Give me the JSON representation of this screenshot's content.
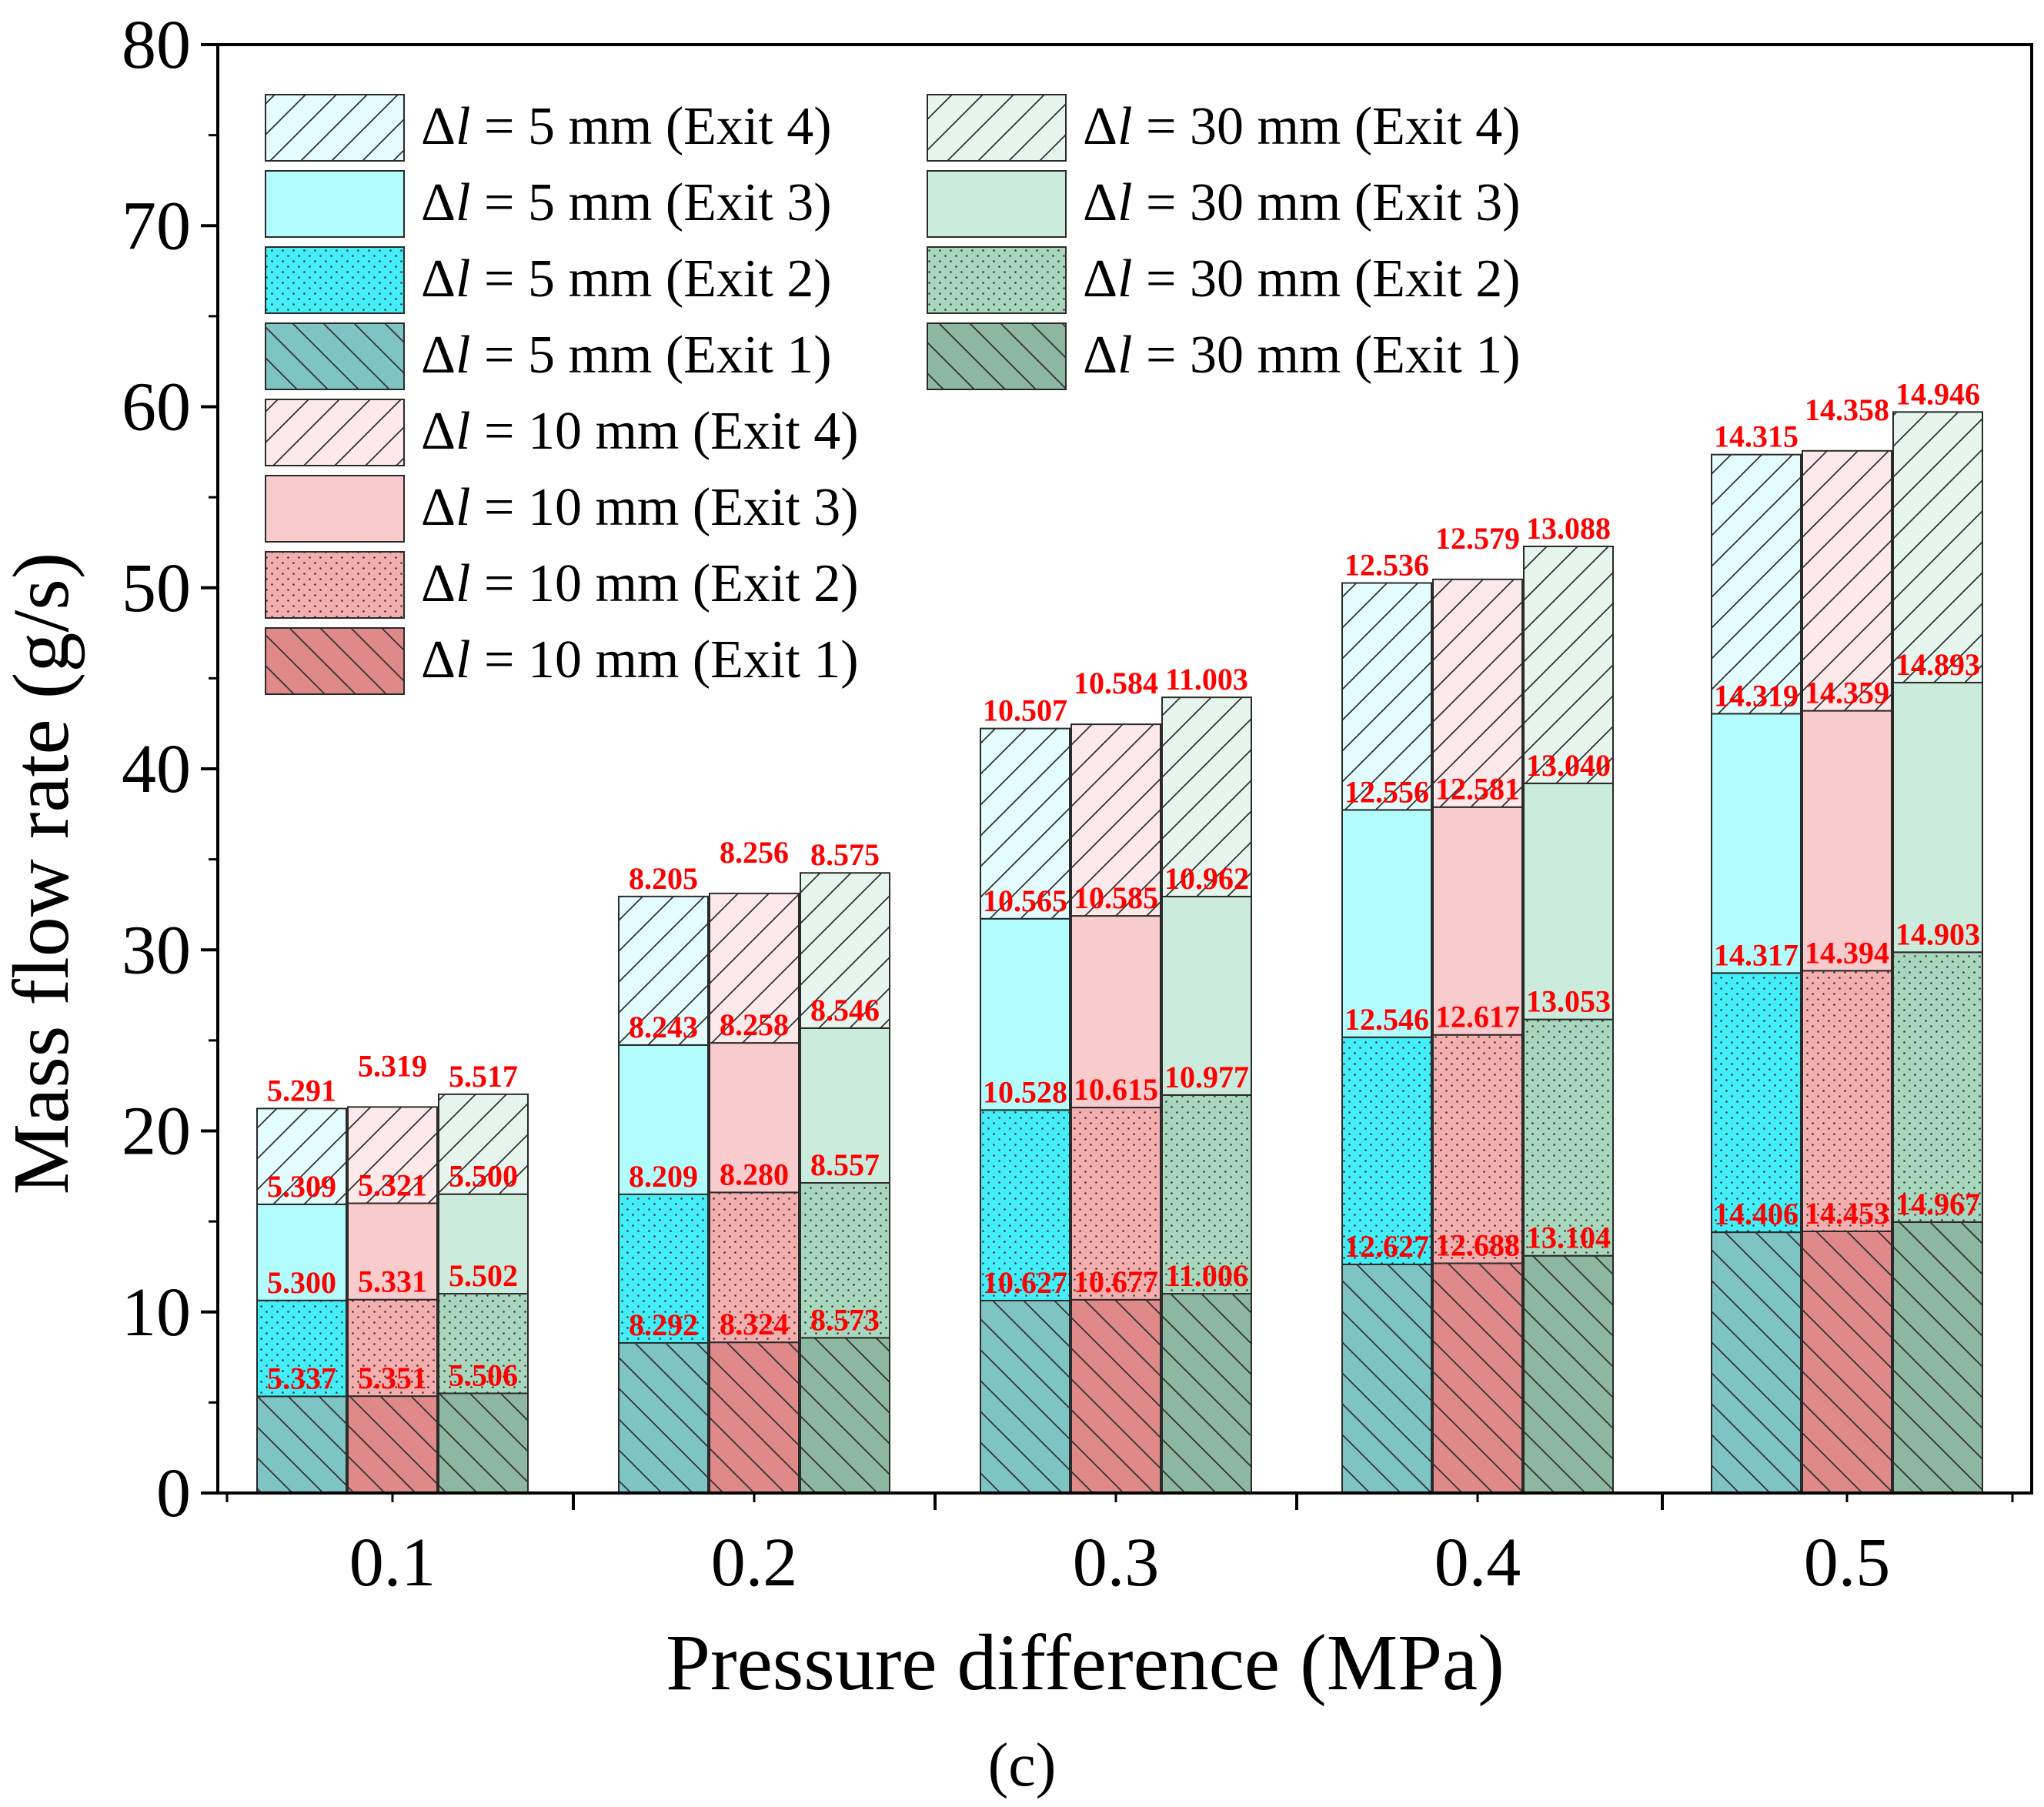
{
  "chart_data": {
    "type": "bar",
    "stacked": true,
    "xlabel": "Pressure difference (MPa)",
    "ylabel": "Mass flow rate (g/s)",
    "ylim": [
      0,
      80
    ],
    "yticks": [
      "0",
      "10",
      "20",
      "30",
      "40",
      "50",
      "60",
      "70",
      "80"
    ],
    "categories": [
      "0.1",
      "0.2",
      "0.3",
      "0.4",
      "0.5"
    ],
    "panel_label": "(c)",
    "groups": [
      {
        "prefix": "Δ",
        "var": "l",
        "value_text": " = 5 mm",
        "colors": {
          "exit1": "#7fc4c4",
          "exit2": "#44eef8",
          "exit3": "#b3fcfd",
          "exit4": "#e3fcfe"
        },
        "exit1": [
          "5.337",
          "8.292",
          "10.627",
          "12.627",
          "14.406"
        ],
        "exit2": [
          "5.300",
          "8.209",
          "10.528",
          "12.546",
          "14.317"
        ],
        "exit3": [
          "5.309",
          "8.243",
          "10.565",
          "12.556",
          "14.319"
        ],
        "exit4": [
          "5.291",
          "8.205",
          "10.507",
          "12.536",
          "14.315"
        ]
      },
      {
        "prefix": "Δ",
        "var": "l",
        "value_text": " = 10 mm",
        "colors": {
          "exit1": "#e08989",
          "exit2": "#f4aeae",
          "exit3": "#f8cccc",
          "exit4": "#fde9ea"
        },
        "exit1": [
          "5.351",
          "8.324",
          "10.677",
          "12.688",
          "14.453"
        ],
        "exit2": [
          "5.331",
          "8.280",
          "10.615",
          "12.617",
          "14.394"
        ],
        "exit3": [
          "5.321",
          "8.258",
          "10.585",
          "12.581",
          "14.359"
        ],
        "exit4": [
          "5.319",
          "8.256",
          "10.584",
          "12.579",
          "14.358"
        ]
      },
      {
        "prefix": "Δ",
        "var": "l",
        "value_text": " = 30 mm",
        "colors": {
          "exit1": "#8db7a0",
          "exit2": "#a9d7bd",
          "exit3": "#cbecdc",
          "exit4": "#e6f6ee"
        },
        "exit1": [
          "5.506",
          "8.573",
          "11.006",
          "13.104",
          "14.967"
        ],
        "exit2": [
          "5.502",
          "8.557",
          "10.977",
          "13.053",
          "14.903"
        ],
        "exit3": [
          "5.500",
          "8.546",
          "10.962",
          "13.040",
          "14.893"
        ],
        "exit4": [
          "5.517",
          "8.575",
          "11.003",
          "13.088",
          "14.946"
        ]
      }
    ],
    "legend": {
      "position": "upper-left",
      "columns": [
        [
          {
            "group": 0,
            "exit": "exit4",
            "text": " (Exit 4)"
          },
          {
            "group": 0,
            "exit": "exit3",
            "text": " (Exit 3)"
          },
          {
            "group": 0,
            "exit": "exit2",
            "text": " (Exit 2)"
          },
          {
            "group": 0,
            "exit": "exit1",
            "text": " (Exit 1)"
          },
          {
            "group": 1,
            "exit": "exit4",
            "text": " (Exit 4)"
          },
          {
            "group": 1,
            "exit": "exit3",
            "text": " (Exit 3)"
          },
          {
            "group": 1,
            "exit": "exit2",
            "text": " (Exit 2)"
          },
          {
            "group": 1,
            "exit": "exit1",
            "text": " (Exit 1)"
          }
        ],
        [
          {
            "group": 2,
            "exit": "exit4",
            "text": " (Exit 4)"
          },
          {
            "group": 2,
            "exit": "exit3",
            "text": " (Exit 3)"
          },
          {
            "group": 2,
            "exit": "exit2",
            "text": " (Exit 2)"
          },
          {
            "group": 2,
            "exit": "exit1",
            "text": " (Exit 1)"
          }
        ]
      ]
    },
    "exit_patterns": {
      "exit1": "backslash-hatch",
      "exit2": "dots",
      "exit3": "solid",
      "exit4": "slash-hatch"
    },
    "label_color": "#ff0000",
    "grid": false
  }
}
